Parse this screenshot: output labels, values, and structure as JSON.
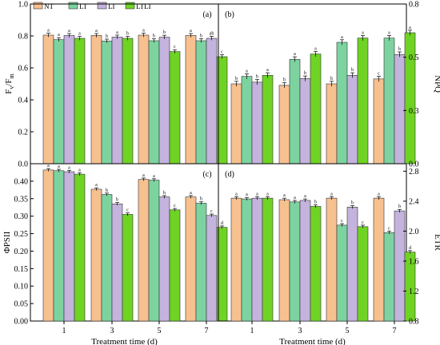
{
  "colors": {
    "NT": "#f7c08f",
    "LT": "#7dd3a0",
    "LI": "#c3b3dd",
    "LTLI": "#6fd323"
  },
  "legend": [
    "NT",
    "LT",
    "LI",
    "LTLI"
  ],
  "chart_data": [
    {
      "id": "a",
      "type": "bar",
      "panel_label": "(a)",
      "categories": [
        "1",
        "3",
        "5",
        "7"
      ],
      "ylabel": "Fv/Fm",
      "ylabel_main": "F",
      "ylabel_sub1": "v",
      "ylabel_sep": "/F",
      "ylabel_sub2": "m",
      "ylabel_side": "left",
      "ylim": [
        0,
        1.0
      ],
      "yticks": [
        0,
        0.2,
        0.4,
        0.6,
        0.8,
        1.0
      ],
      "series": [
        {
          "name": "NT",
          "values": [
            0.805,
            0.803,
            0.805,
            0.803
          ],
          "err": [
            0.012,
            0.012,
            0.012,
            0.012
          ],
          "sig": [
            "a",
            "a",
            "a",
            "a"
          ]
        },
        {
          "name": "LT",
          "values": [
            0.777,
            0.768,
            0.77,
            0.77
          ],
          "err": [
            0.012,
            0.012,
            0.012,
            0.012
          ],
          "sig": [
            "a",
            "b",
            "b",
            "b"
          ]
        },
        {
          "name": "LI",
          "values": [
            0.803,
            0.793,
            0.792,
            0.785
          ],
          "err": [
            0.012,
            0.012,
            0.012,
            0.012
          ],
          "sig": [
            "a",
            "a",
            "b",
            "ab"
          ]
        },
        {
          "name": "LTLI",
          "values": [
            0.785,
            0.785,
            0.702,
            0.67
          ],
          "err": [
            0.012,
            0.012,
            0.012,
            0.012
          ],
          "sig": [
            "a",
            "b",
            "c",
            "c"
          ]
        }
      ]
    },
    {
      "id": "b",
      "type": "bar",
      "panel_label": "(b)",
      "categories": [
        "1",
        "3",
        "5",
        "7"
      ],
      "ylabel": "NPQ",
      "ylabel_side": "right",
      "ylim": [
        0,
        0.75
      ],
      "yticks": [
        0,
        0.25,
        0.5,
        0.75
      ],
      "series": [
        {
          "name": "NT",
          "values": [
            0.375,
            0.368,
            0.375,
            0.398
          ],
          "err": [
            0.012,
            0.012,
            0.012,
            0.012
          ],
          "sig": [
            "b",
            "b",
            "b",
            "c"
          ]
        },
        {
          "name": "LT",
          "values": [
            0.41,
            0.49,
            0.57,
            0.59
          ],
          "err": [
            0.012,
            0.012,
            0.012,
            0.012
          ],
          "sig": [
            "a",
            "a",
            "a",
            "a"
          ]
        },
        {
          "name": "LI",
          "values": [
            0.383,
            0.4,
            0.415,
            0.513
          ],
          "err": [
            0.012,
            0.012,
            0.012,
            0.012
          ],
          "sig": [
            "b",
            "b",
            "b",
            "b"
          ]
        },
        {
          "name": "LTLI",
          "values": [
            0.415,
            0.515,
            0.59,
            0.615
          ],
          "err": [
            0.012,
            0.012,
            0.012,
            0.012
          ],
          "sig": [
            "a",
            "a",
            "a",
            "a"
          ]
        }
      ]
    },
    {
      "id": "c",
      "type": "bar",
      "panel_label": "(c)",
      "categories": [
        "1",
        "3",
        "5",
        "7"
      ],
      "xlabel": "Treatment time (d)",
      "ylabel": "ΦPSII",
      "ylabel_side": "left",
      "ylim": [
        0,
        0.45
      ],
      "yticks": [
        0,
        0.05,
        0.1,
        0.15,
        0.2,
        0.25,
        0.3,
        0.35,
        0.4
      ],
      "series": [
        {
          "name": "NT",
          "values": [
            0.432,
            0.377,
            0.405,
            0.355
          ],
          "err": [
            0.004,
            0.004,
            0.004,
            0.004
          ],
          "sig": [
            "a",
            "a",
            "a",
            "a"
          ]
        },
        {
          "name": "LT",
          "values": [
            0.43,
            0.362,
            0.403,
            0.337
          ],
          "err": [
            0.004,
            0.004,
            0.004,
            0.004
          ],
          "sig": [
            "a",
            "b",
            "a",
            "b"
          ]
        },
        {
          "name": "LI",
          "values": [
            0.427,
            0.335,
            0.355,
            0.302
          ],
          "err": [
            0.004,
            0.004,
            0.004,
            0.004
          ],
          "sig": [
            "a",
            "b",
            "b",
            "c"
          ]
        },
        {
          "name": "LTLI",
          "values": [
            0.42,
            0.305,
            0.318,
            0.268
          ],
          "err": [
            0.004,
            0.004,
            0.004,
            0.004
          ],
          "sig": [
            "a",
            "c",
            "c",
            "d"
          ]
        }
      ]
    },
    {
      "id": "d",
      "type": "bar",
      "panel_label": "(d)",
      "categories": [
        "1",
        "3",
        "5",
        "7"
      ],
      "xlabel": "Treatment time (d)",
      "ylabel": "ETR",
      "ylabel_side": "right",
      "ylim": [
        0.8,
        2.9
      ],
      "yticks": [
        0.8,
        1.2,
        1.6,
        2.0,
        2.4,
        2.8
      ],
      "series": [
        {
          "name": "NT",
          "values": [
            2.44,
            2.42,
            2.44,
            2.44
          ],
          "err": [
            0.02,
            0.02,
            0.02,
            0.02
          ],
          "sig": [
            "a",
            "a",
            "a",
            "a"
          ]
        },
        {
          "name": "LT",
          "values": [
            2.43,
            2.39,
            2.08,
            1.98
          ],
          "err": [
            0.02,
            0.02,
            0.02,
            0.02
          ],
          "sig": [
            "a",
            "a",
            "c",
            "c"
          ]
        },
        {
          "name": "LI",
          "values": [
            2.44,
            2.41,
            2.32,
            2.27
          ],
          "err": [
            0.02,
            0.02,
            0.02,
            0.02
          ],
          "sig": [
            "a",
            "a",
            "b",
            "b"
          ]
        },
        {
          "name": "LTLI",
          "values": [
            2.44,
            2.33,
            2.06,
            1.72
          ],
          "err": [
            0.02,
            0.02,
            0.02,
            0.02
          ],
          "sig": [
            "a",
            "b",
            "c",
            "d"
          ]
        }
      ]
    }
  ]
}
